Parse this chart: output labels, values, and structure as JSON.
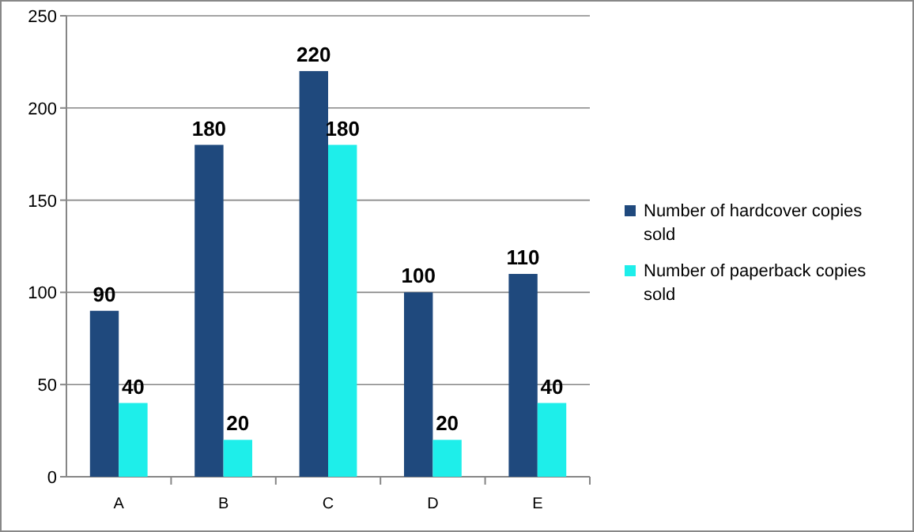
{
  "chart_data": {
    "type": "bar",
    "categories": [
      "A",
      "B",
      "C",
      "D",
      "E"
    ],
    "series": [
      {
        "name": "Number of hardcover copies sold",
        "color": "#1f497d",
        "values": [
          90,
          180,
          220,
          100,
          110
        ]
      },
      {
        "name": "Number of paperback copies sold",
        "color": "#1eeeea",
        "values": [
          40,
          20,
          180,
          20,
          40
        ]
      }
    ],
    "ylim": [
      0,
      250
    ],
    "yticks": [
      0,
      50,
      100,
      150,
      200,
      250
    ],
    "grid": "y",
    "legend": "right",
    "data_labels": true
  }
}
